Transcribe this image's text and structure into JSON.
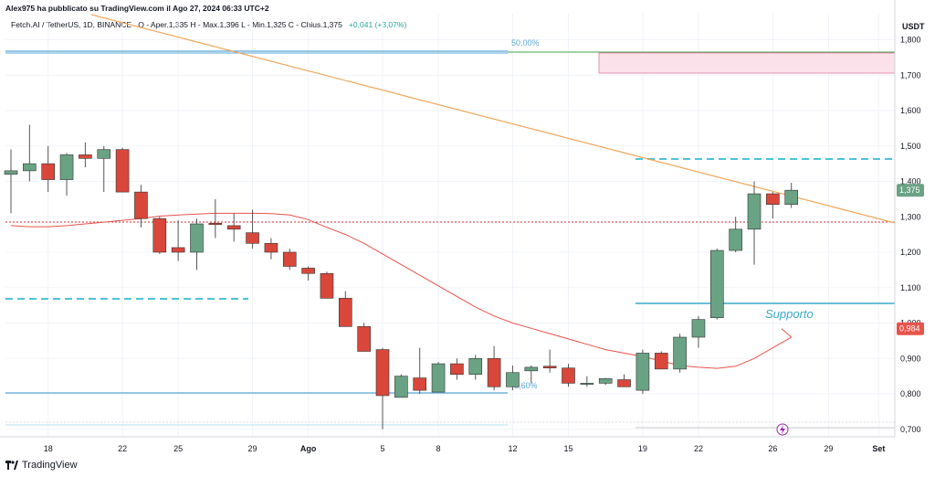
{
  "header": {
    "published": "Alex975 ha pubblicato su TradingView.com il Ago 27, 2024 06:33 UTC+2",
    "symbol_line": "Fetch.AI / TetherUS, 1D, BINANCE",
    "ohlc": "O - Aper.1,335  H - Max.1,396  L - Min.1,325  C - Chius.1,375",
    "change": "+0,041 (+3,07%)"
  },
  "footer": {
    "brand": "TradingView"
  },
  "colors": {
    "up": "#6aa284",
    "down": "#d9473b",
    "trend": "#f0a65a",
    "ma": "#e8534a",
    "cyan": "#4cc3d9",
    "support": "#3aa9c9",
    "fib": "#5aa7d6",
    "green_line": "#43a047",
    "zone_fill": "#fbe2ea",
    "zone_border": "#e07aa0",
    "red_dotted": "#d32f2f"
  },
  "chart_data": {
    "type": "candlestick",
    "currency": "USDT",
    "y_ticks": [
      "1,800",
      "1,700",
      "1,600",
      "1,500",
      "1,400",
      "1,300",
      "1,200",
      "1,100",
      "1,000",
      "0,900",
      "0,800",
      "0,700"
    ],
    "x_ticks": [
      "18",
      "22",
      "25",
      "29",
      "Ago",
      "5",
      "8",
      "12",
      "15",
      "19",
      "22",
      "26",
      "29",
      "Set"
    ],
    "last_price_label": "1,375",
    "ma_label": "0,984",
    "annotations": {
      "fib_50": "50,00%",
      "fib_low": "8,60%",
      "support": "Supporto"
    },
    "candles": [
      {
        "o": 1.42,
        "h": 1.49,
        "l": 1.31,
        "c": 1.43
      },
      {
        "o": 1.43,
        "h": 1.56,
        "l": 1.4,
        "c": 1.45
      },
      {
        "o": 1.45,
        "h": 1.5,
        "l": 1.37,
        "c": 1.405
      },
      {
        "o": 1.405,
        "h": 1.48,
        "l": 1.36,
        "c": 1.475
      },
      {
        "o": 1.475,
        "h": 1.51,
        "l": 1.44,
        "c": 1.465
      },
      {
        "o": 1.465,
        "h": 1.5,
        "l": 1.37,
        "c": 1.49
      },
      {
        "o": 1.49,
        "h": 1.495,
        "l": 1.37,
        "c": 1.37
      },
      {
        "o": 1.37,
        "h": 1.39,
        "l": 1.27,
        "c": 1.295
      },
      {
        "o": 1.295,
        "h": 1.3,
        "l": 1.195,
        "c": 1.2
      },
      {
        "o": 1.213,
        "h": 1.29,
        "l": 1.175,
        "c": 1.2
      },
      {
        "o": 1.2,
        "h": 1.295,
        "l": 1.15,
        "c": 1.28
      },
      {
        "o": 1.282,
        "h": 1.35,
        "l": 1.24,
        "c": 1.278
      },
      {
        "o": 1.275,
        "h": 1.31,
        "l": 1.23,
        "c": 1.265
      },
      {
        "o": 1.255,
        "h": 1.32,
        "l": 1.21,
        "c": 1.225
      },
      {
        "o": 1.225,
        "h": 1.24,
        "l": 1.18,
        "c": 1.2
      },
      {
        "o": 1.2,
        "h": 1.21,
        "l": 1.15,
        "c": 1.16
      },
      {
        "o": 1.155,
        "h": 1.16,
        "l": 1.12,
        "c": 1.14
      },
      {
        "o": 1.14,
        "h": 1.145,
        "l": 1.07,
        "c": 1.07
      },
      {
        "o": 1.07,
        "h": 1.09,
        "l": 0.99,
        "c": 0.99
      },
      {
        "o": 0.99,
        "h": 1.0,
        "l": 0.92,
        "c": 0.92
      },
      {
        "o": 0.925,
        "h": 0.93,
        "l": 0.7,
        "c": 0.795
      },
      {
        "o": 0.79,
        "h": 0.855,
        "l": 0.79,
        "c": 0.85
      },
      {
        "o": 0.845,
        "h": 0.93,
        "l": 0.8,
        "c": 0.81
      },
      {
        "o": 0.805,
        "h": 0.89,
        "l": 0.805,
        "c": 0.885
      },
      {
        "o": 0.885,
        "h": 0.9,
        "l": 0.84,
        "c": 0.855
      },
      {
        "o": 0.855,
        "h": 0.91,
        "l": 0.84,
        "c": 0.9
      },
      {
        "o": 0.9,
        "h": 0.935,
        "l": 0.81,
        "c": 0.82
      },
      {
        "o": 0.82,
        "h": 0.88,
        "l": 0.81,
        "c": 0.86
      },
      {
        "o": 0.865,
        "h": 0.88,
        "l": 0.83,
        "c": 0.875
      },
      {
        "o": 0.878,
        "h": 0.925,
        "l": 0.86,
        "c": 0.873
      },
      {
        "o": 0.873,
        "h": 0.885,
        "l": 0.82,
        "c": 0.83
      },
      {
        "o": 0.83,
        "h": 0.85,
        "l": 0.82,
        "c": 0.83
      },
      {
        "o": 0.83,
        "h": 0.845,
        "l": 0.825,
        "c": 0.843
      },
      {
        "o": 0.84,
        "h": 0.855,
        "l": 0.82,
        "c": 0.82
      },
      {
        "o": 0.81,
        "h": 0.925,
        "l": 0.8,
        "c": 0.915
      },
      {
        "o": 0.915,
        "h": 0.92,
        "l": 0.87,
        "c": 0.87
      },
      {
        "o": 0.87,
        "h": 0.97,
        "l": 0.86,
        "c": 0.96
      },
      {
        "o": 0.96,
        "h": 1.02,
        "l": 0.93,
        "c": 1.01
      },
      {
        "o": 1.015,
        "h": 1.21,
        "l": 1.01,
        "c": 1.205
      },
      {
        "o": 1.205,
        "h": 1.3,
        "l": 1.2,
        "c": 1.265
      },
      {
        "o": 1.265,
        "h": 1.4,
        "l": 1.165,
        "c": 1.365
      },
      {
        "o": 1.365,
        "h": 1.37,
        "l": 1.295,
        "c": 1.335
      },
      {
        "o": 1.335,
        "h": 1.396,
        "l": 1.325,
        "c": 1.375
      }
    ]
  }
}
